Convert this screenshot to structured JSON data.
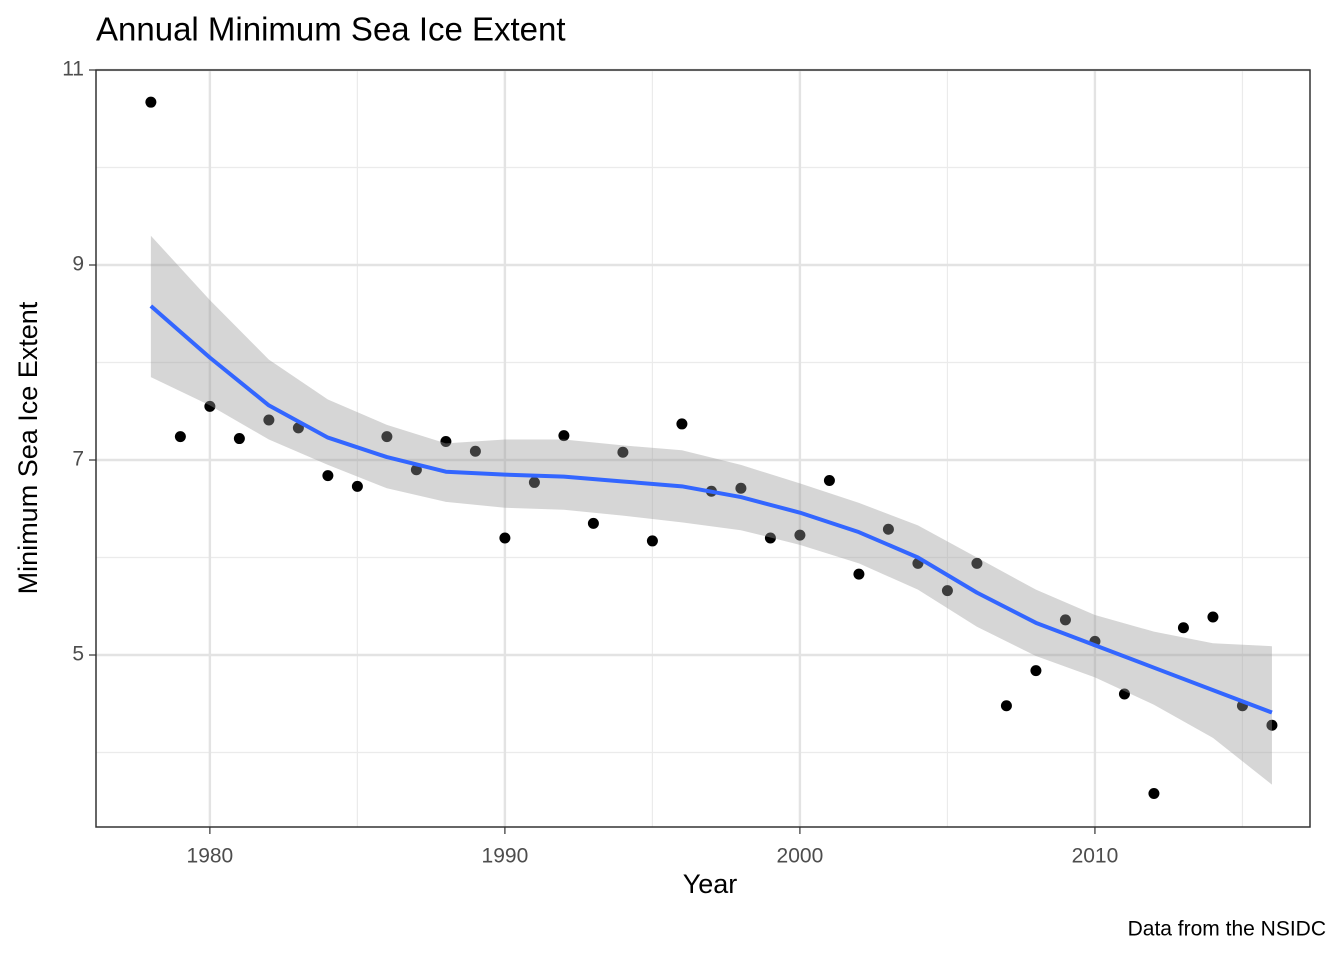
{
  "chart_data": {
    "type": "scatter",
    "title": "Annual Minimum Sea Ice Extent",
    "x_label": "Year",
    "y_label": "Minimum Sea Ice Extent",
    "caption": "Data from the NSIDC",
    "x": [
      1978,
      1979,
      1980,
      1981,
      1982,
      1983,
      1984,
      1985,
      1986,
      1987,
      1988,
      1989,
      1990,
      1991,
      1992,
      1993,
      1994,
      1995,
      1996,
      1997,
      1998,
      1999,
      2000,
      2001,
      2002,
      2003,
      2004,
      2005,
      2006,
      2007,
      2008,
      2009,
      2010,
      2011,
      2012,
      2013,
      2014,
      2015,
      2016
    ],
    "values": [
      10.67,
      7.24,
      7.55,
      7.22,
      7.41,
      7.33,
      6.84,
      6.73,
      7.24,
      6.9,
      7.19,
      7.09,
      6.2,
      6.77,
      7.25,
      6.35,
      7.08,
      6.17,
      7.37,
      6.68,
      6.71,
      6.2,
      6.23,
      6.79,
      5.83,
      6.29,
      5.94,
      5.66,
      5.94,
      4.48,
      4.84,
      5.36,
      5.14,
      4.6,
      3.58,
      5.28,
      5.39,
      4.48,
      4.28
    ],
    "color": "#000000",
    "smooth": {
      "x": [
        1978,
        1980,
        1982,
        1984,
        1986,
        1988,
        1990,
        1992,
        1994,
        1996,
        1998,
        2000,
        2002,
        2004,
        2006,
        2008,
        2010,
        2012,
        2014,
        2016
      ],
      "values": [
        8.58,
        8.05,
        7.56,
        7.23,
        7.03,
        6.88,
        6.85,
        6.83,
        6.78,
        6.73,
        6.62,
        6.46,
        6.26,
        6.0,
        5.64,
        5.33,
        5.1,
        4.87,
        4.64,
        4.41
      ],
      "lower": [
        7.85,
        7.56,
        7.21,
        6.95,
        6.71,
        6.57,
        6.51,
        6.49,
        6.43,
        6.36,
        6.28,
        6.13,
        5.94,
        5.67,
        5.29,
        4.99,
        4.77,
        4.49,
        4.15,
        3.67
      ],
      "upper": [
        9.3,
        8.64,
        8.03,
        7.62,
        7.36,
        7.17,
        7.21,
        7.21,
        7.15,
        7.1,
        6.95,
        6.76,
        6.56,
        6.33,
        6.0,
        5.67,
        5.41,
        5.24,
        5.12,
        5.09
      ],
      "color": "#3366ff",
      "band_color": "#999999"
    },
    "xlim": [
      1976.14,
      2017.29
    ],
    "ylim": [
      3.236,
      11
    ],
    "xticks": [
      1980,
      1990,
      2000,
      2010
    ],
    "yticks": [
      5,
      7,
      9,
      11
    ],
    "x_minor_ticks": [
      1975,
      1985,
      1995,
      2005,
      2015
    ],
    "y_minor_ticks": [
      4,
      6,
      8,
      10
    ],
    "grid": true
  }
}
